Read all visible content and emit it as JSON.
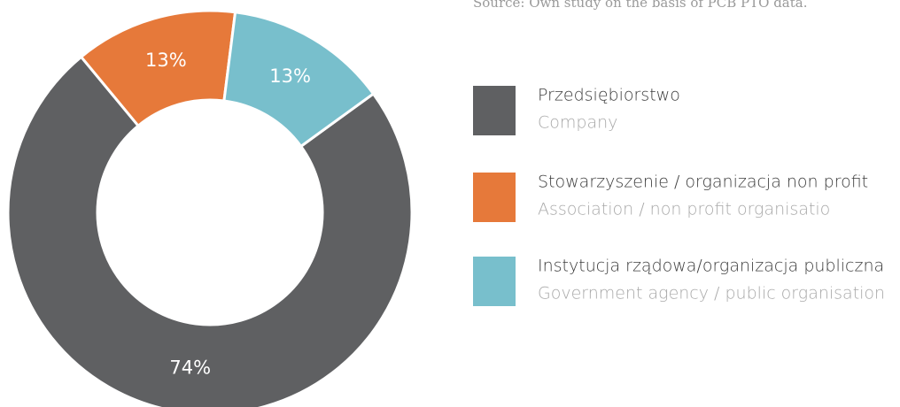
{
  "chart_data": {
    "type": "donut",
    "source": "Source: Own study on the basis of PCB PTO data.",
    "categories": [
      "Przedsiębiorstwo",
      "Stowarzyszenie / organizacja non profit",
      "Instytucja rządowa/organizacja publiczna"
    ],
    "categories_en": [
      "Company",
      "Association / non profit organisatio",
      "Government agency / public organisation"
    ],
    "values": [
      74,
      13,
      13
    ],
    "value_labels": [
      "74%",
      "13%",
      "13%"
    ],
    "colors": [
      "#5f6062",
      "#e6793a",
      "#78bfcc"
    ]
  }
}
